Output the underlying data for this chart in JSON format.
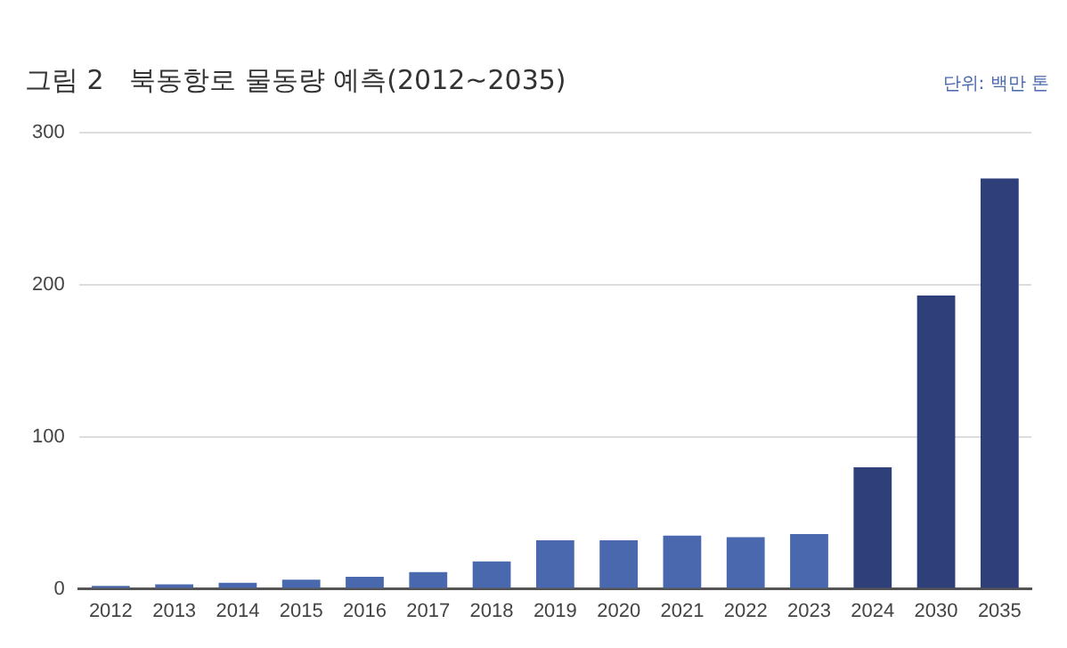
{
  "chart_data": {
    "type": "bar",
    "title": "그림 2   북동항로 물동량 예측(2012~2035)",
    "annotations": [
      "단위: 백만 톤"
    ],
    "categories": [
      "2012",
      "2013",
      "2014",
      "2015",
      "2016",
      "2017",
      "2018",
      "2019",
      "2020",
      "2021",
      "2022",
      "2023",
      "2024",
      "2030",
      "2035"
    ],
    "values": [
      2,
      3,
      4,
      6,
      8,
      11,
      18,
      32,
      32,
      35,
      34,
      36,
      80,
      193,
      270
    ],
    "colors": [
      "#4a68ad",
      "#4a68ad",
      "#4a68ad",
      "#4a68ad",
      "#4a68ad",
      "#4a68ad",
      "#4a68ad",
      "#4a68ad",
      "#4a68ad",
      "#4a68ad",
      "#4a68ad",
      "#4a68ad",
      "#2e3f7a",
      "#2e3f7a",
      "#2e3f7a"
    ],
    "ylim": [
      0,
      300
    ],
    "yticks": [
      0,
      100,
      200,
      300
    ],
    "grid": "y",
    "legend": false
  }
}
